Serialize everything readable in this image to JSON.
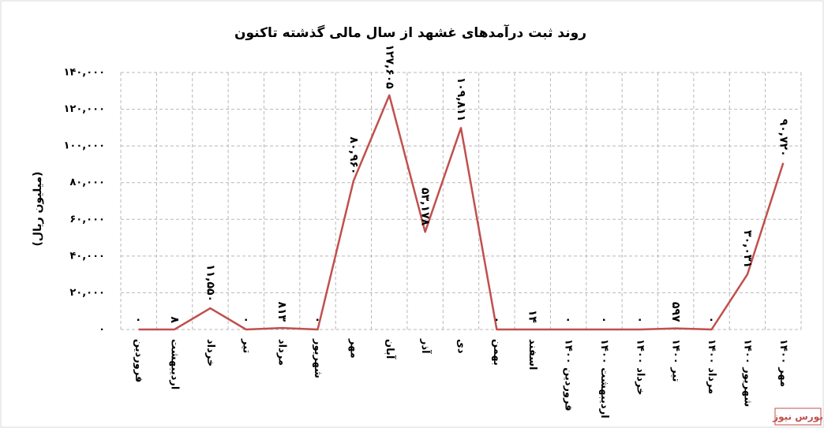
{
  "chart_data": {
    "type": "line",
    "title": "روند ثبت درآمدهای غشهد  از سال مالی گذشته تاکنون",
    "y_label": "(میلیون ریال)",
    "source": "بورس نیوز",
    "categories": [
      "فروردین",
      "اردیبهشت",
      "خرداد",
      "تیر",
      "مرداد",
      "شهریور",
      "مهر",
      "آبان",
      "آذر",
      "دی",
      "بهمن",
      "اسفند",
      "فروردین ۱۴۰۰",
      "اردیبهشت ۱۴۰۰",
      "خرداد ۱۴۰۰",
      "تیر ۱۴۰۰",
      "مرداد ۱۴۰۰",
      "شهریور ۱۴۰۰",
      "مهر ۱۴۰۰"
    ],
    "values": [
      0,
      8,
      11550,
      0,
      813,
      0,
      80960,
      127605,
      53178,
      109811,
      0,
      14,
      0,
      0,
      0,
      597,
      0,
      30031,
      90720
    ],
    "value_labels": [
      "۰",
      "۸",
      "۱۱,۵۵۰",
      "۰",
      "۸۱۳",
      "۰",
      "۸۰,۹۶۰",
      "۱۲۷,۶۰۵",
      "۵۳,۱۷۸",
      "۱۰۹,۸۱۱",
      "۰",
      "۱۴",
      "۰",
      "۰",
      "۰",
      "۵۹۷",
      "۰",
      "۳۰,۰۳۱",
      "۹۰,۷۲۰"
    ],
    "color": "#c0504d",
    "ylim": [
      0,
      140000
    ],
    "yticks": [
      {
        "value": 0,
        "label": "۰"
      },
      {
        "value": 20000,
        "label": "۲۰,۰۰۰"
      },
      {
        "value": 40000,
        "label": "۴۰,۰۰۰"
      },
      {
        "value": 60000,
        "label": "۶۰,۰۰۰"
      },
      {
        "value": 80000,
        "label": "۸۰,۰۰۰"
      },
      {
        "value": 100000,
        "label": "۱۰۰,۰۰۰"
      },
      {
        "value": 120000,
        "label": "۱۲۰,۰۰۰"
      },
      {
        "value": 140000,
        "label": "۱۴۰,۰۰۰"
      }
    ],
    "grid": true
  }
}
